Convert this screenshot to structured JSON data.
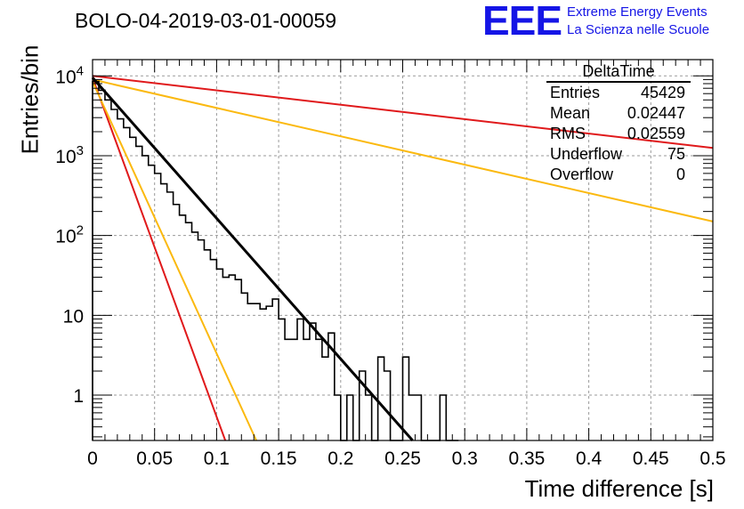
{
  "header": {
    "run_id": "BOLO-04-2019-03-01-00059",
    "logo": "EEE",
    "project_line1": "Extreme Energy Events",
    "project_line2": "La Scienza nelle Scuole"
  },
  "stats_box": {
    "title": "DeltaTime",
    "rows": [
      {
        "label": "Entries",
        "value": "45429"
      },
      {
        "label": "Mean",
        "value": "0.02447"
      },
      {
        "label": "RMS",
        "value": "0.02559"
      },
      {
        "label": "Underflow",
        "value": "75"
      },
      {
        "label": "Overflow",
        "value": "0"
      }
    ]
  },
  "colors": {
    "histogram": "#000000",
    "fit": "#000000",
    "slow_red": "#e0191b",
    "slow_yellow": "#fbb90f",
    "fast_red": "#e0191b",
    "fast_yellow": "#fbb90f",
    "grid": "#9a9a9a"
  },
  "chart_data": {
    "type": "histogram",
    "title": "BOLO-04-2019-03-01-00059",
    "xlabel": "Time difference [s]",
    "ylabel": "Entries/bin",
    "xlim": [
      0,
      0.5
    ],
    "ylim": [
      0.27,
      16000
    ],
    "yscale": "log",
    "grid": true,
    "x_ticks": [
      "0",
      "0.05",
      "0.1",
      "0.15",
      "0.2",
      "0.25",
      "0.3",
      "0.35",
      "0.4",
      "0.45",
      "0.5"
    ],
    "y_ticks": [
      {
        "value": 1,
        "label": "1"
      },
      {
        "value": 10,
        "label": "10"
      },
      {
        "value": 100,
        "label": "10^2"
      },
      {
        "value": 1000,
        "label": "10^3"
      },
      {
        "value": 10000,
        "label": "10^4"
      }
    ],
    "bin_width": 0.005,
    "histogram_counts": [
      8500,
      6600,
      5000,
      3800,
      2900,
      2250,
      1700,
      1310,
      1000,
      760,
      600,
      445,
      350,
      245,
      180,
      145,
      110,
      88,
      66,
      50,
      38,
      30,
      32,
      28,
      19,
      14,
      14,
      12,
      13,
      16,
      9,
      5,
      5,
      9,
      5,
      8,
      5,
      3,
      6,
      1,
      0.1,
      1,
      0.1,
      2,
      1,
      0.1,
      3,
      2,
      0.1,
      0.1,
      3,
      1,
      1,
      0.1,
      0.1,
      0.1,
      1,
      0.1,
      0.1
    ],
    "lines": [
      {
        "role": "exponential-fit",
        "color": "#000000",
        "x": [
          0,
          0.258
        ],
        "y": [
          9500,
          0.27
        ]
      },
      {
        "role": "slow-upper-red",
        "color": "#e0191b",
        "x": [
          0,
          0.5
        ],
        "y": [
          10000,
          1250
        ]
      },
      {
        "role": "slow-upper-yellow",
        "color": "#fbb90f",
        "x": [
          0,
          0.5
        ],
        "y": [
          9000,
          150
        ]
      },
      {
        "role": "steep-red",
        "color": "#e0191b",
        "x": [
          0,
          0.107
        ],
        "y": [
          9500,
          0.27
        ]
      },
      {
        "role": "steep-yellow",
        "color": "#fbb90f",
        "x": [
          0,
          0.132
        ],
        "y": [
          8500,
          0.27
        ]
      }
    ]
  }
}
